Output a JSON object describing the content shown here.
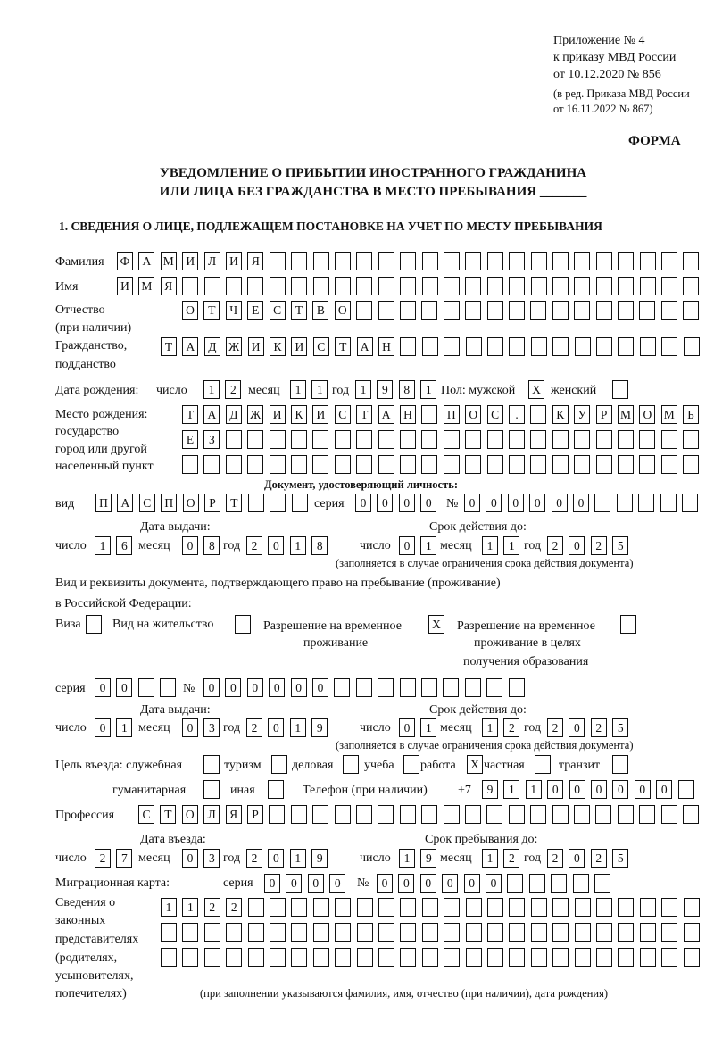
{
  "header": {
    "line1": "Приложение № 4",
    "line2": "к приказу МВД России",
    "line3": "от 10.12.2020 № 856",
    "line4": "(в ред. Приказа МВД России",
    "line5": "от 16.11.2022 № 867)",
    "forma": "ФОРМА",
    "title1": "УВЕДОМЛЕНИЕ О ПРИБЫТИИ ИНОСТРАННОГО ГРАЖДАНИНА",
    "title2": "ИЛИ ЛИЦА БЕЗ ГРАЖДАНСТВА В МЕСТО ПРЕБЫВАНИЯ _______",
    "section1": "1. СВЕДЕНИЯ О ЛИЦЕ, ПОДЛЕЖАЩЕМ ПОСТАНОВКЕ НА УЧЕТ ПО МЕСТУ ПРЕБЫВАНИЯ"
  },
  "labels": {
    "surname": "Фамилия",
    "name": "Имя",
    "patronymic1": "Отчество",
    "patronymic2": "(при наличии)",
    "citizenship1": "Гражданство,",
    "citizenship2": "подданство",
    "dob": "Дата рождения:",
    "day": "число",
    "month": "месяц",
    "year": "год",
    "sex": "Пол: мужской",
    "female": "женский",
    "pob1": "Место рождения:",
    "pob2": "государство",
    "pob3": "город или другой",
    "pob4": "населенный пункт",
    "id_doc": "Документ, удостоверяющий личность:",
    "kind": "вид",
    "series": "серия",
    "number": "№",
    "issue_date": "Дата выдачи:",
    "valid_until": "Срок действия до:",
    "validity_note": "(заполняется в случае ограничения срока действия документа)",
    "permit1": "Вид и реквизиты документа, подтверждающего право на пребывание (проживание)",
    "permit2": "в Российской Федерации:",
    "visa": "Виза",
    "residence": "Вид на жительство",
    "rvp1": "Разрешение на временное",
    "rvp2": "проживание",
    "rvpo1": "Разрешение на временное",
    "rvpo2": "проживание в целях",
    "rvpo3": "получения образования",
    "purpose": "Цель въезда: служебная",
    "tourism": "туризм",
    "business": "деловая",
    "study": "учеба",
    "work": "работа",
    "private": "частная",
    "transit": "транзит",
    "humanitarian": "гуманитарная",
    "other": "иная",
    "phone": "Телефон (при наличии)",
    "phone_prefix": "+7",
    "profession": "Профессия",
    "entry_date": "Дата въезда:",
    "stay_until": "Срок пребывания до:",
    "migration_card": "Миграционная карта:",
    "reps1": "Сведения о",
    "reps2": "законных",
    "reps3": "представителях",
    "reps4": "(родителях,",
    "reps5": "усыновителях,",
    "reps6": "попечителях)",
    "reps_note": "(при заполнении указываются фамилия, имя, отчество (при наличии), дата рождения)"
  },
  "fields": {
    "surname": "ФАМИЛИЯ",
    "name": "ИМЯ",
    "patronymic": "ОТЧЕСТВО",
    "citizenship": "ТАДЖИКИСТАН",
    "dob_day": "12",
    "dob_month": "11",
    "dob_year": "1981",
    "sex_male": "X",
    "sex_female": "",
    "pob_row1": "ТАДЖИКИСТАН ПОС. КУРМОМБ",
    "pob_row2": "ЕЗ",
    "pob_row3": "",
    "doc_kind": "ПАСПОРТ",
    "doc_series": "0000",
    "doc_number": "000000",
    "doc_issue_day": "16",
    "doc_issue_month": "08",
    "doc_issue_year": "2018",
    "doc_exp_day": "01",
    "doc_exp_month": "11",
    "doc_exp_year": "2025",
    "permit_visa": "",
    "permit_residence": "",
    "permit_rvp": "X",
    "permit_rvp_edu": "",
    "permit_series": "00",
    "permit_number": "000000",
    "permit_issue_day": "01",
    "permit_issue_month": "03",
    "permit_issue_year": "2019",
    "permit_exp_day": "01",
    "permit_exp_month": "12",
    "permit_exp_year": "2025",
    "purpose_official": "",
    "purpose_tourism": "",
    "purpose_business": "",
    "purpose_study": "",
    "purpose_work": "X",
    "purpose_private": "",
    "purpose_transit": "",
    "purpose_humanitarian": "",
    "purpose_other": "",
    "phone": "911000000",
    "profession": "СТОЛЯР",
    "entry_day": "27",
    "entry_month": "03",
    "entry_year": "2019",
    "stay_day": "19",
    "stay_month": "12",
    "stay_year": "2025",
    "mig_series": "0000",
    "mig_number": "000000",
    "reps_row1": "1122",
    "reps_row2": "",
    "reps_row3": ""
  }
}
